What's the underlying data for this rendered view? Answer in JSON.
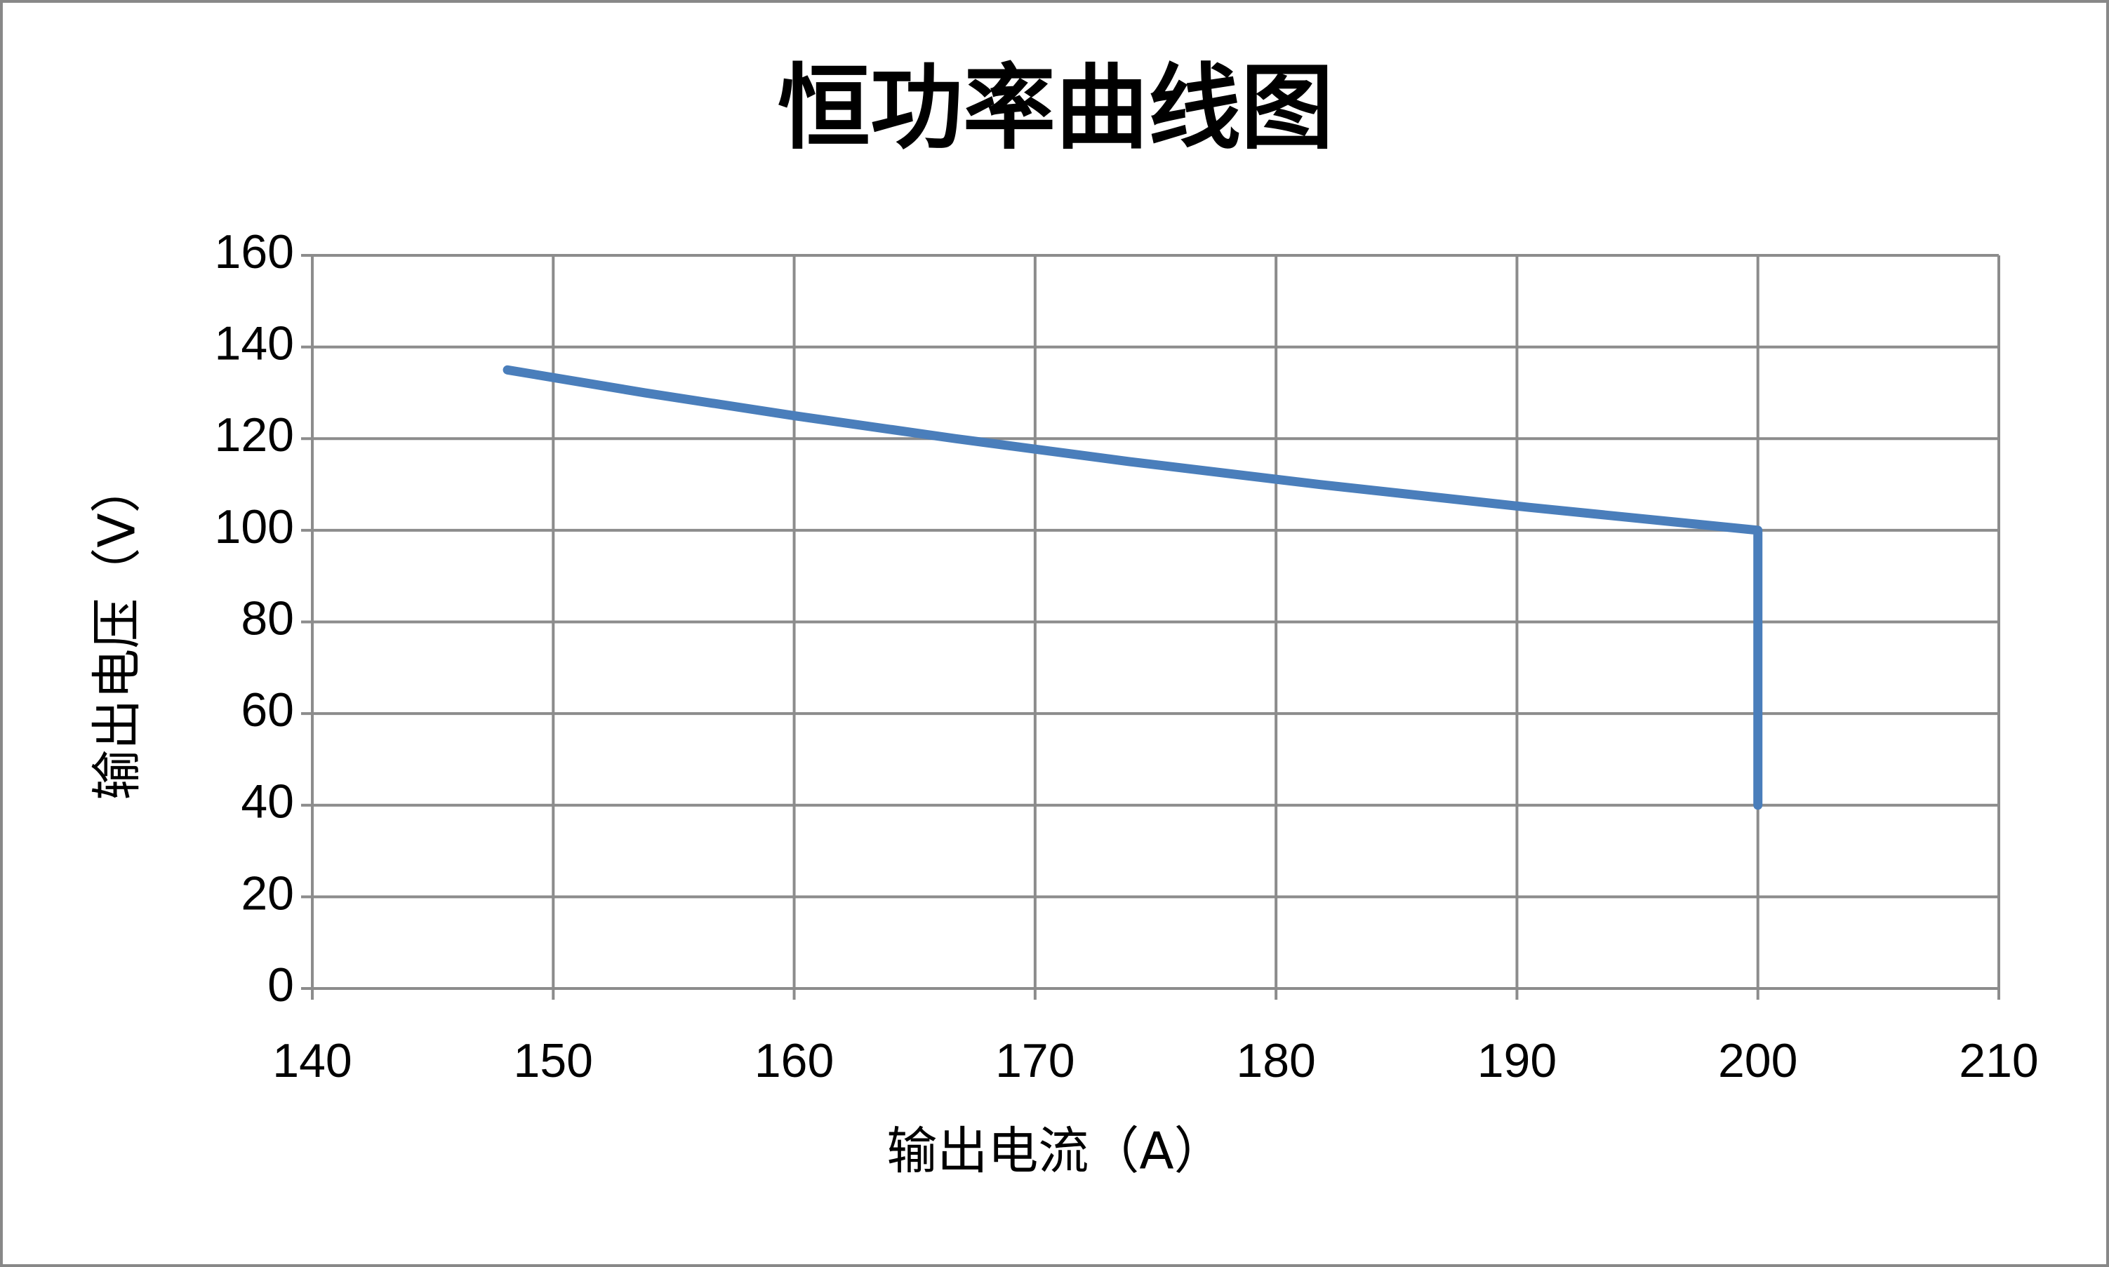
{
  "chart_data": {
    "type": "line",
    "title": "恒功率曲线图",
    "x_label": "输出电流（A）",
    "y_label": "输出电压（V）",
    "x": [
      148.1,
      153.8,
      160,
      166.7,
      173.9,
      181.8,
      190.5,
      200,
      200
    ],
    "series": [
      {
        "color": "#4a7ebb",
        "values": [
          135,
          130,
          125,
          120,
          115,
          110,
          105,
          100,
          40
        ]
      }
    ],
    "xlim": [
      140,
      210
    ],
    "xticks": [
      140,
      150,
      160,
      170,
      180,
      190,
      200,
      210
    ],
    "ylim": [
      0,
      160
    ],
    "yticks": [
      0,
      20,
      40,
      60,
      80,
      100,
      120,
      140,
      160
    ],
    "grid": true
  }
}
